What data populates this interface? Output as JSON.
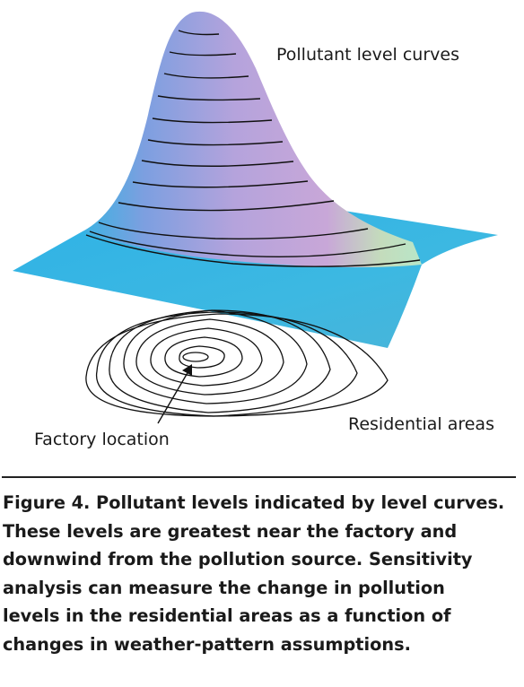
{
  "labels": {
    "level_curves": "Pollutant level curves",
    "factory_location": "Factory location",
    "residential_areas": "Residential areas"
  },
  "caption": {
    "lines": [
      "Figure 4. Pollutant levels indicated by level curves.",
      "These levels are greatest near the factory and",
      "downwind from the pollution source. Sensitivity",
      "analysis can measure the change in pollution",
      "levels in the residential areas as a function of",
      "changes in weather-pattern assumptions."
    ]
  },
  "colors": {
    "surface_edge": "#38b4dc",
    "surface_top": "#c0a6dc",
    "surface_highlight": "#c6e2b4",
    "plane": "#35b4e4",
    "contour": "#111111"
  }
}
